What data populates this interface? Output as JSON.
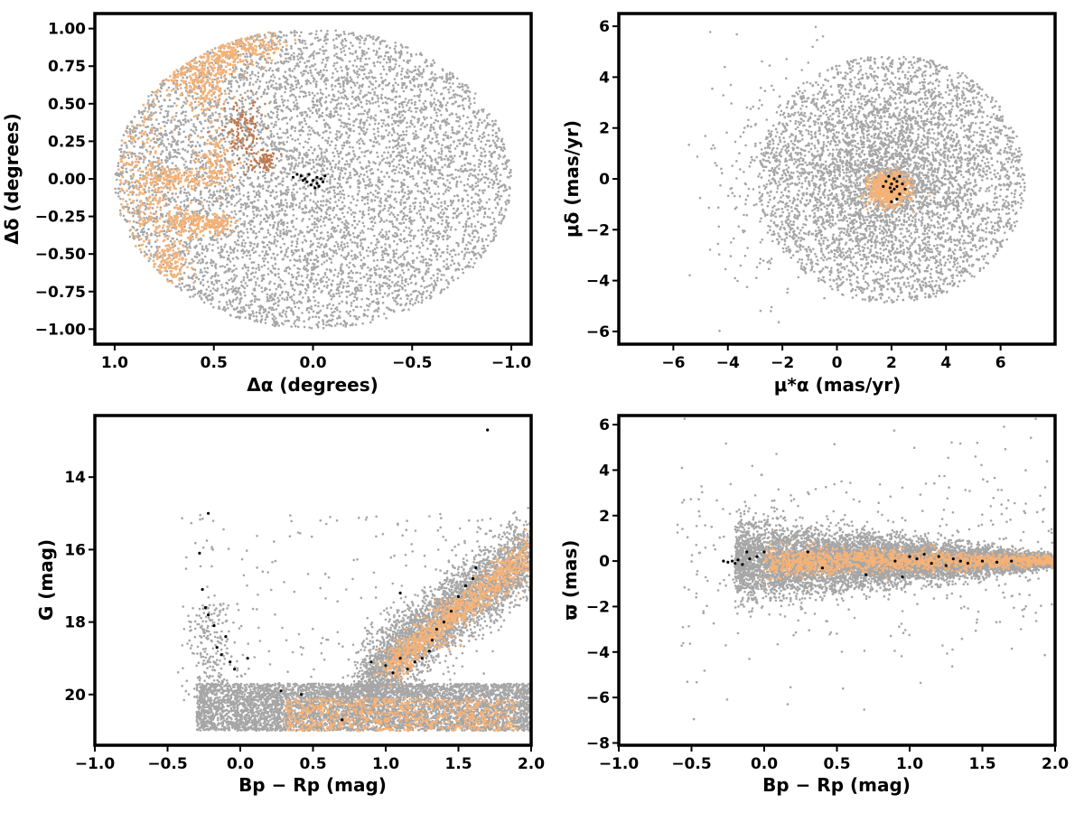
{
  "colors": {
    "field": "#a6a6a6",
    "candidates": "#f5b277",
    "members": "#000000",
    "ridge": "#c0784a"
  },
  "chart_data": [
    {
      "id": "sky",
      "type": "scatter",
      "xlabel": "Δα (degrees)",
      "ylabel": "Δδ (degrees)",
      "xlim": [
        1.1,
        -1.1
      ],
      "ylim": [
        -1.1,
        1.1
      ],
      "x_reversed": true,
      "xticks": [
        1.0,
        0.5,
        0.0,
        -0.5,
        -1.0
      ],
      "xtick_labels": [
        "1.0",
        "0.5",
        "0.0",
        "−0.5",
        "−1.0"
      ],
      "yticks": [
        1.0,
        0.75,
        0.5,
        0.25,
        0.0,
        -0.25,
        -0.5,
        -0.75,
        -1.0
      ],
      "ytick_labels": [
        "1.00",
        "0.75",
        "0.50",
        "0.25",
        "0.00",
        "−0.25",
        "−0.50",
        "−0.75",
        "−1.00"
      ],
      "grid": false,
      "series": [
        {
          "role": "field",
          "distribution": "uniform disk",
          "center": [
            0.0,
            0.0
          ],
          "radius": 1.0
        },
        {
          "role": "candidates",
          "distribution": "clumps at eastern edge",
          "x_range": [
            0.2,
            1.0
          ],
          "y_range": [
            -0.75,
            1.0
          ]
        },
        {
          "role": "members",
          "points": [
            [
              0.1,
              0.01
            ],
            [
              0.08,
              0.03
            ],
            [
              0.06,
              0.02
            ],
            [
              0.04,
              0.0
            ],
            [
              0.03,
              -0.02
            ],
            [
              0.02,
              0.03
            ],
            [
              0.01,
              -0.04
            ],
            [
              0.0,
              -0.01
            ],
            [
              -0.01,
              -0.06
            ],
            [
              -0.02,
              -0.03
            ],
            [
              -0.03,
              -0.05
            ],
            [
              -0.04,
              0.0
            ],
            [
              -0.05,
              -0.02
            ],
            [
              -0.06,
              0.02
            ],
            [
              0.05,
              -0.01
            ],
            [
              -0.02,
              0.01
            ]
          ]
        }
      ]
    },
    {
      "id": "pm",
      "type": "scatter",
      "xlabel": "μ*α (mas/yr)",
      "ylabel": "μδ (mas/yr)",
      "xlim": [
        -8.0,
        8.0
      ],
      "ylim": [
        -6.5,
        6.5
      ],
      "xticks": [
        -6,
        -4,
        -2,
        0,
        2,
        4,
        6
      ],
      "xtick_labels": [
        "−6",
        "−4",
        "−2",
        "0",
        "2",
        "4",
        "6"
      ],
      "yticks": [
        6,
        4,
        2,
        0,
        -2,
        -4,
        -6
      ],
      "ytick_labels": [
        "6",
        "4",
        "2",
        "0",
        "−2",
        "−4",
        "−6"
      ],
      "grid": false,
      "series": [
        {
          "role": "field",
          "distribution": "disk",
          "center": [
            2.0,
            0.0
          ],
          "radius": 4.9
        },
        {
          "role": "candidates",
          "distribution": "compact clump",
          "center": [
            1.9,
            -0.4
          ],
          "radius": 0.8
        },
        {
          "role": "members",
          "points": [
            [
              2.0,
              -0.2
            ],
            [
              2.1,
              0.0
            ],
            [
              2.2,
              -0.3
            ],
            [
              1.8,
              -0.1
            ],
            [
              2.3,
              -0.6
            ],
            [
              2.0,
              -0.5
            ],
            [
              2.4,
              -0.2
            ],
            [
              1.9,
              0.1
            ],
            [
              2.2,
              -0.8
            ],
            [
              2.1,
              -0.4
            ],
            [
              1.7,
              -0.3
            ],
            [
              2.3,
              0.1
            ],
            [
              2.5,
              -0.4
            ],
            [
              2.0,
              -0.9
            ],
            [
              2.2,
              -0.1
            ],
            [
              1.95,
              -0.35
            ]
          ]
        }
      ]
    },
    {
      "id": "cmd",
      "type": "scatter",
      "xlabel": "Bp − Rp (mag)",
      "ylabel": "G (mag)",
      "xlim": [
        -1.0,
        2.0
      ],
      "ylim": [
        21.4,
        12.3
      ],
      "y_reversed": true,
      "xticks": [
        -1.0,
        -0.5,
        0.0,
        0.5,
        1.0,
        1.5,
        2.0
      ],
      "xtick_labels": [
        "−1.0",
        "−0.5",
        "0.0",
        "0.5",
        "1.0",
        "1.5",
        "2.0"
      ],
      "yticks": [
        20,
        18,
        16,
        14
      ],
      "ytick_labels": [
        "20",
        "18",
        "16",
        "14"
      ],
      "grid": false,
      "series": [
        {
          "role": "field",
          "distribution": "faint band + main sequence",
          "x_range": [
            -0.6,
            2.0
          ],
          "y_range": [
            15.2,
            21.0
          ]
        },
        {
          "role": "candidates",
          "distribution": "main sequence",
          "x_range": [
            0.2,
            2.0
          ],
          "y_range": [
            16.0,
            21.0
          ]
        },
        {
          "role": "members",
          "points": [
            [
              -0.28,
              16.1
            ],
            [
              -0.22,
              15.0
            ],
            [
              -0.26,
              17.1
            ],
            [
              -0.24,
              17.6
            ],
            [
              -0.22,
              17.8
            ],
            [
              -0.18,
              18.1
            ],
            [
              -0.16,
              18.7
            ],
            [
              -0.13,
              18.9
            ],
            [
              -0.1,
              18.4
            ],
            [
              -0.07,
              19.1
            ],
            [
              -0.04,
              19.3
            ],
            [
              0.05,
              19.0
            ],
            [
              0.28,
              19.9
            ],
            [
              0.42,
              20.0
            ],
            [
              0.7,
              20.7
            ],
            [
              0.9,
              19.1
            ],
            [
              1.0,
              19.2
            ],
            [
              1.05,
              19.4
            ],
            [
              1.1,
              19.0
            ],
            [
              1.15,
              19.3
            ],
            [
              1.2,
              19.1
            ],
            [
              1.25,
              19.0
            ],
            [
              1.3,
              18.8
            ],
            [
              1.32,
              18.5
            ],
            [
              1.35,
              18.2
            ],
            [
              1.4,
              18.0
            ],
            [
              1.45,
              17.7
            ],
            [
              1.5,
              17.3
            ],
            [
              1.55,
              17.0
            ],
            [
              1.6,
              16.8
            ],
            [
              1.62,
              16.5
            ],
            [
              1.1,
              17.2
            ],
            [
              1.7,
              12.7
            ]
          ]
        }
      ]
    },
    {
      "id": "parallax",
      "type": "scatter",
      "xlabel": "Bp − Rp (mag)",
      "ylabel": "ϖ (mas)",
      "xlim": [
        -1.0,
        2.0
      ],
      "ylim": [
        -8.1,
        6.4
      ],
      "xticks": [
        -1.0,
        -0.5,
        0.0,
        0.5,
        1.0,
        1.5,
        2.0
      ],
      "xtick_labels": [
        "−1.0",
        "−0.5",
        "0.0",
        "0.5",
        "1.0",
        "1.5",
        "2.0"
      ],
      "yticks": [
        6,
        4,
        2,
        0,
        -2,
        -4,
        -6,
        -8
      ],
      "ytick_labels": [
        "6",
        "4",
        "2",
        "0",
        "−2",
        "−4",
        "−6",
        "−8"
      ],
      "grid": false,
      "series": [
        {
          "role": "field",
          "distribution": "band centered on zero",
          "x_range": [
            -0.7,
            2.0
          ],
          "y_range": [
            -7.5,
            5.7
          ]
        },
        {
          "role": "candidates",
          "distribution": "tight band near zero",
          "x_range": [
            0.0,
            2.0
          ],
          "y_range": [
            -1.0,
            1.0
          ]
        },
        {
          "role": "members",
          "points": [
            [
              -0.28,
              0.0
            ],
            [
              -0.25,
              -0.05
            ],
            [
              -0.22,
              0.0
            ],
            [
              -0.2,
              -0.1
            ],
            [
              -0.18,
              0.05
            ],
            [
              -0.15,
              -0.15
            ],
            [
              -0.12,
              0.4
            ],
            [
              -0.1,
              0.1
            ],
            [
              -0.05,
              0.2
            ],
            [
              0.0,
              0.4
            ],
            [
              0.3,
              0.4
            ],
            [
              0.4,
              -0.3
            ],
            [
              0.7,
              -0.6
            ],
            [
              0.9,
              0.0
            ],
            [
              0.95,
              -0.7
            ],
            [
              1.0,
              0.2
            ],
            [
              1.05,
              0.1
            ],
            [
              1.1,
              0.3
            ],
            [
              1.15,
              -0.1
            ],
            [
              1.2,
              0.2
            ],
            [
              1.25,
              -0.2
            ],
            [
              1.3,
              0.1
            ],
            [
              1.35,
              0.0
            ],
            [
              1.4,
              -0.1
            ],
            [
              1.5,
              0.0
            ],
            [
              1.6,
              -0.05
            ],
            [
              1.7,
              0.0
            ]
          ]
        }
      ]
    }
  ]
}
